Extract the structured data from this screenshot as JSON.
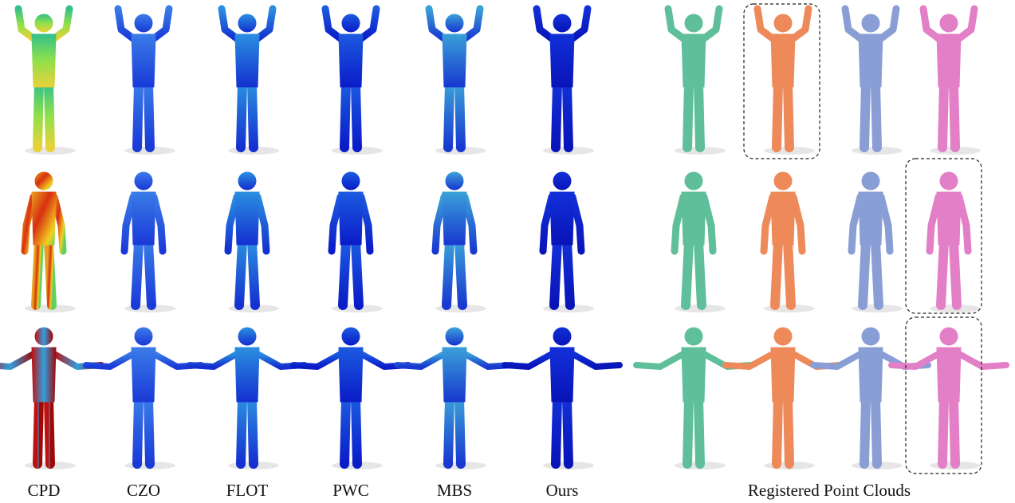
{
  "captions": {
    "methods": [
      "CPD",
      "CZO",
      "FLOT",
      "PWC",
      "MBS",
      "Ours"
    ],
    "registered": "Registered Point Clouds"
  }
}
